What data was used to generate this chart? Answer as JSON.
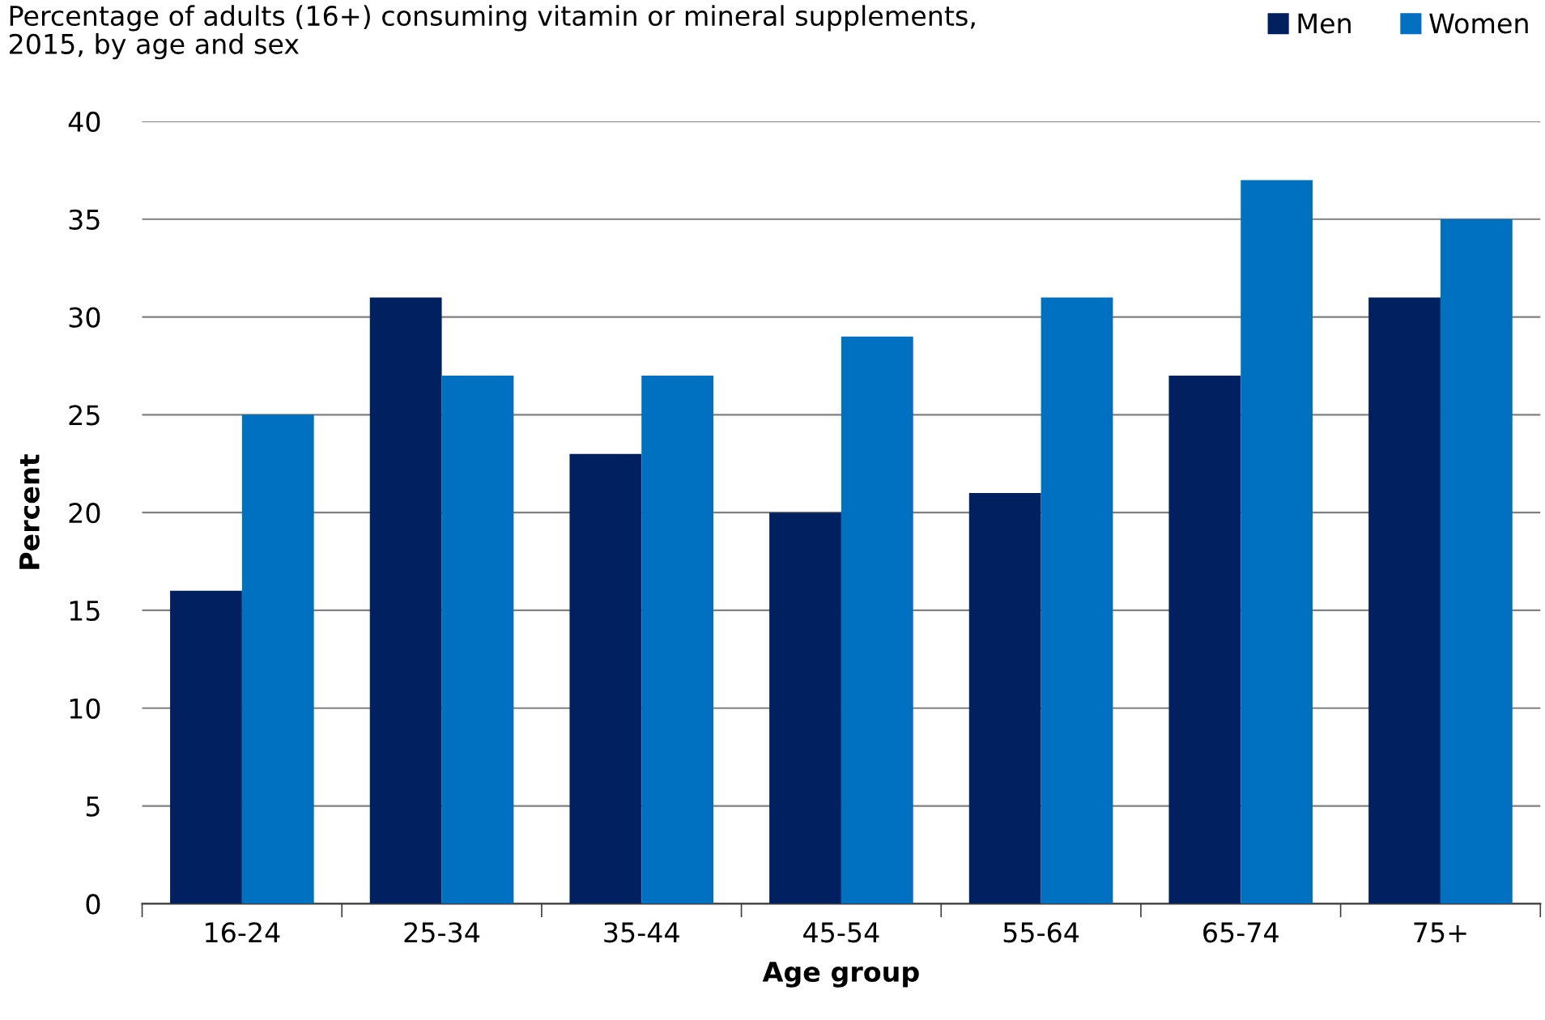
{
  "chart_data": {
    "type": "bar",
    "title": "Percentage of adults (16+) consuming vitamin or mineral supplements,\n2015, by age and sex",
    "xlabel": "Age group",
    "ylabel": "Percent",
    "categories": [
      "16-24",
      "25-34",
      "35-44",
      "45-54",
      "55-64",
      "65-74",
      "75+"
    ],
    "series": [
      {
        "name": "Men",
        "color": "#002060",
        "values": [
          16,
          31,
          23,
          20,
          21,
          27,
          31
        ]
      },
      {
        "name": "Women",
        "color": "#0070c0",
        "values": [
          25,
          27,
          27,
          29,
          31,
          37,
          35
        ]
      }
    ],
    "ylim": [
      0,
      40
    ],
    "yticks": [
      0,
      5,
      10,
      15,
      20,
      25,
      30,
      35,
      40
    ],
    "grid": "y",
    "legend": "top right"
  }
}
